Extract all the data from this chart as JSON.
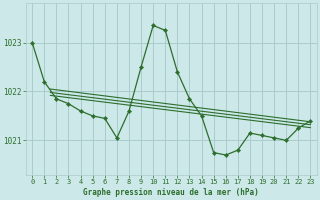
{
  "title": "Graphe pression niveau de la mer (hPa)",
  "bg_color": "#cce8e8",
  "grid_color": "#aacccc",
  "line_color": "#2d6e2d",
  "marker_color": "#2d6e2d",
  "xlim": [
    -0.5,
    23.5
  ],
  "ylim": [
    1020.3,
    1023.8
  ],
  "yticks": [
    1021,
    1022,
    1023
  ],
  "ytick_labels": [
    "1021",
    "1022",
    "1023"
  ],
  "xticks": [
    0,
    1,
    2,
    3,
    4,
    5,
    6,
    7,
    8,
    9,
    10,
    11,
    12,
    13,
    14,
    15,
    16,
    17,
    18,
    19,
    20,
    21,
    22,
    23
  ],
  "series1_x": [
    0,
    1,
    2,
    3,
    4,
    5,
    6,
    7,
    8,
    9,
    10,
    11,
    12,
    13,
    14,
    15,
    16,
    17,
    18,
    19,
    20,
    21,
    22,
    23
  ],
  "series1_y": [
    1023.0,
    1022.2,
    1021.85,
    1021.75,
    1021.6,
    1021.5,
    1021.45,
    1021.05,
    1021.6,
    1022.5,
    1023.35,
    1023.25,
    1022.4,
    1021.85,
    1021.5,
    1020.75,
    1020.7,
    1020.8,
    1021.15,
    1021.1,
    1021.05,
    1021.0,
    1021.25,
    1021.4
  ],
  "trend1_x": [
    1.5,
    23
  ],
  "trend1_y": [
    1022.05,
    1021.38
  ],
  "trend2_x": [
    1.5,
    23
  ],
  "trend2_y": [
    1021.98,
    1021.32
  ],
  "trend3_x": [
    1.5,
    23
  ],
  "trend3_y": [
    1021.92,
    1021.26
  ]
}
